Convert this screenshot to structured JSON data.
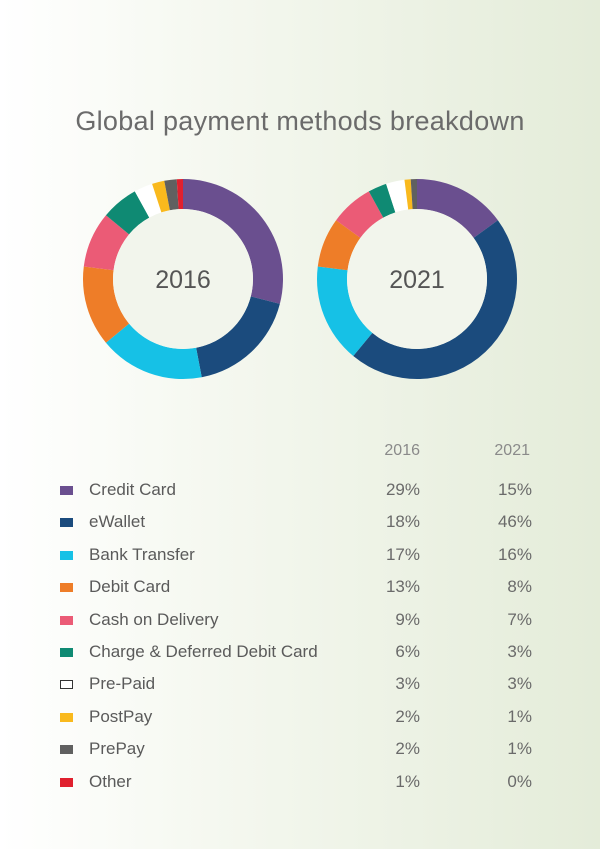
{
  "title": "Global payment methods breakdown",
  "colors": {
    "credit_card": "#6a4f8f",
    "ewallet": "#1b4b7d",
    "bank_transfer": "#16c1e6",
    "debit_card": "#ee7d28",
    "cash_on_delivery": "#eb5b76",
    "charge_deferred": "#0f8a73",
    "pre_paid": "#ffffff",
    "postpay": "#f9b91d",
    "prepay": "#606060",
    "other": "#e0202e"
  },
  "chart_data": [
    {
      "type": "pie",
      "title": "2016",
      "donut": true,
      "categories": [
        "Credit Card",
        "eWallet",
        "Bank Transfer",
        "Debit Card",
        "Cash on Delivery",
        "Charge & Deferred Debit Card",
        "Pre-Paid",
        "PostPay",
        "PrePay",
        "Other"
      ],
      "values": [
        29,
        18,
        17,
        13,
        9,
        6,
        3,
        2,
        2,
        1
      ],
      "labels": [
        "29%",
        "18%",
        "17%",
        "13%",
        "9%",
        "6%",
        "3%",
        "2%",
        "2%",
        "1%"
      ]
    },
    {
      "type": "pie",
      "title": "2021",
      "donut": true,
      "categories": [
        "Credit Card",
        "eWallet",
        "Bank Transfer",
        "Debit Card",
        "Cash on Delivery",
        "Charge & Deferred Debit Card",
        "Pre-Paid",
        "PostPay",
        "PrePay",
        "Other"
      ],
      "values": [
        15,
        46,
        16,
        8,
        7,
        3,
        3,
        1,
        1,
        0
      ],
      "labels": [
        "15%",
        "46%",
        "16%",
        "8%",
        "7%",
        "3%",
        "3%",
        "1%",
        "1%",
        "0%"
      ]
    }
  ]
}
